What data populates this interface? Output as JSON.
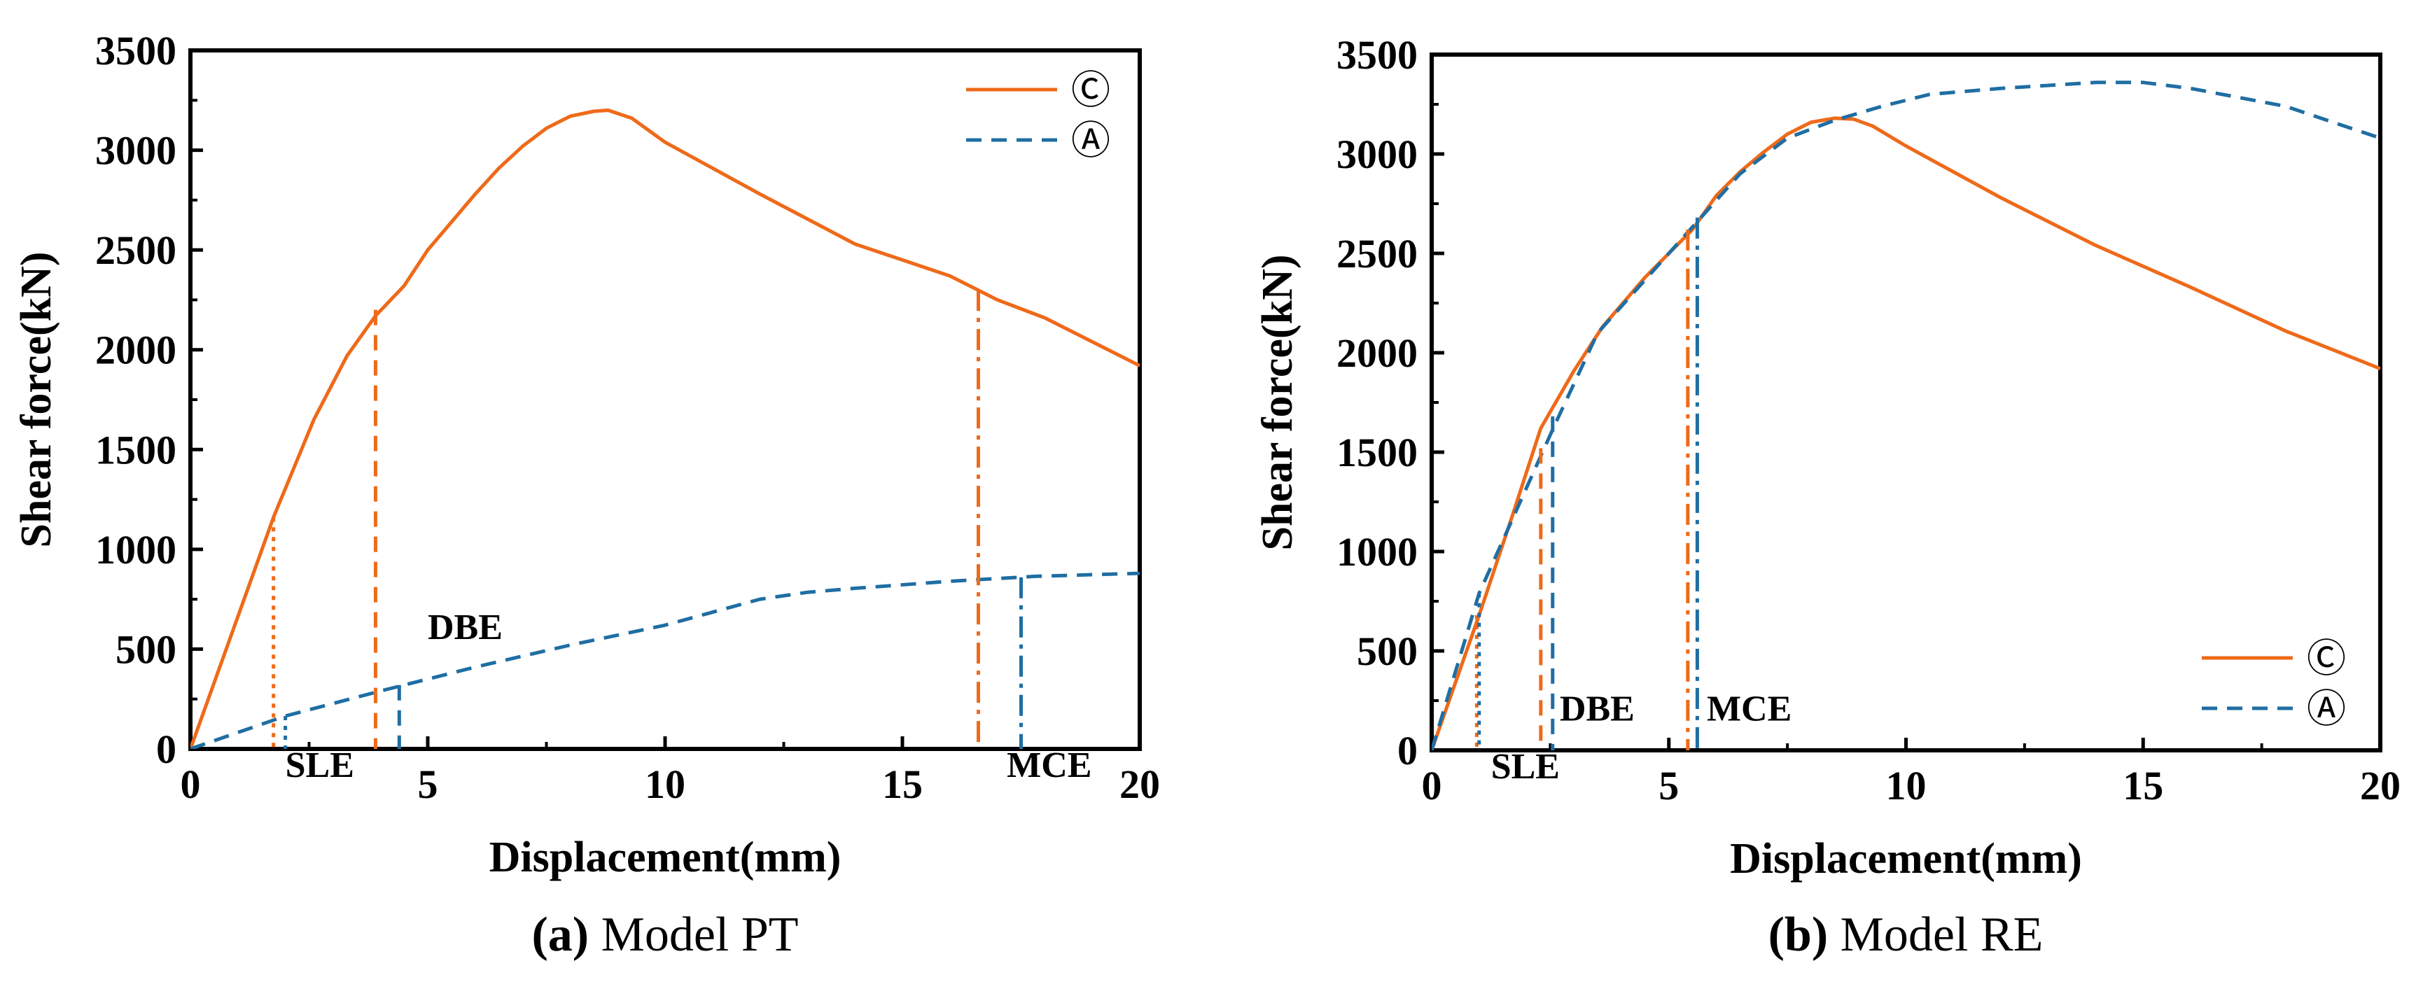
{
  "chart_data": [
    {
      "type": "line",
      "caption_letter": "(a)",
      "caption_text": " Model PT",
      "xlabel": "Displacement(mm)",
      "ylabel": "Shear force(kN)",
      "xlim": [
        0,
        20
      ],
      "ylim": [
        0,
        3500
      ],
      "xticks": [
        0,
        5,
        10,
        15,
        20
      ],
      "yticks": [
        0,
        500,
        1000,
        1500,
        2000,
        2500,
        3000,
        3500
      ],
      "grid": false,
      "legend": {
        "position": "top-right",
        "entries": [
          "Ⓒ",
          "Ⓐ"
        ]
      },
      "series": [
        {
          "name": "Ⓒ",
          "color": "#ee6a1a",
          "style": "solid",
          "x": [
            0,
            1.75,
            2.6,
            3.3,
            3.9,
            4.5,
            5.0,
            6.0,
            6.5,
            7.0,
            7.5,
            8.0,
            8.5,
            8.8,
            9.3,
            10,
            12,
            14,
            16,
            17,
            18,
            20
          ],
          "y": [
            0,
            1160,
            1650,
            1970,
            2170,
            2320,
            2500,
            2780,
            2910,
            3020,
            3110,
            3170,
            3195,
            3200,
            3160,
            3040,
            2780,
            2530,
            2370,
            2250,
            2160,
            1920
          ]
        },
        {
          "name": "Ⓐ",
          "color": "#1f6ea3",
          "style": "dashed",
          "x": [
            0,
            2,
            4,
            6,
            8,
            10,
            12,
            13,
            14,
            16,
            17.8,
            20
          ],
          "y": [
            0,
            165,
            290,
            410,
            520,
            620,
            750,
            785,
            805,
            840,
            865,
            880
          ]
        }
      ],
      "markers": [
        {
          "label": "SLE",
          "x": 1.75,
          "y": 1160,
          "color": "#ee6a1a",
          "style": "dotted"
        },
        {
          "x": 2.0,
          "y": 165,
          "color": "#1f6ea3",
          "style": "dotted"
        },
        {
          "x": 3.9,
          "y": 2200,
          "color": "#ee6a1a",
          "style": "dashed"
        },
        {
          "label": "DBE",
          "x": 4.4,
          "y": 320,
          "color": "#1f6ea3",
          "style": "dashed"
        },
        {
          "x": 16.6,
          "y": 2300,
          "color": "#ee6a1a",
          "style": "dashdot"
        },
        {
          "label": "MCE",
          "x": 17.5,
          "y": 860,
          "color": "#1f6ea3",
          "style": "dashdot"
        }
      ],
      "annotations": [
        {
          "text": "SLE",
          "x": 2.0,
          "y": -140
        },
        {
          "text": "DBE",
          "x": 5.0,
          "y": 550
        },
        {
          "text": "MCE",
          "x": 17.2,
          "y": -140
        }
      ]
    },
    {
      "type": "line",
      "caption_letter": "(b)",
      "caption_text": " Model RE",
      "xlabel": "Displacement(mm)",
      "ylabel": "Shear force(kN)",
      "xlim": [
        0,
        20
      ],
      "ylim": [
        0,
        3500
      ],
      "xticks": [
        0,
        5,
        10,
        15,
        20
      ],
      "yticks": [
        0,
        500,
        1000,
        1500,
        2000,
        2500,
        3000,
        3500
      ],
      "grid": false,
      "legend": {
        "position": "bottom-right",
        "entries": [
          "Ⓒ",
          "Ⓐ"
        ]
      },
      "series": [
        {
          "name": "Ⓒ",
          "color": "#ee6a1a",
          "style": "solid",
          "x": [
            0,
            1.0,
            1.7,
            2.3,
            3.0,
            3.6,
            4.5,
            5.5,
            6.0,
            6.5,
            7.0,
            7.5,
            8.0,
            8.5,
            8.9,
            9.3,
            10,
            12,
            14,
            16,
            18,
            20
          ],
          "y": [
            0,
            680,
            1180,
            1620,
            1910,
            2130,
            2380,
            2620,
            2790,
            2910,
            3010,
            3100,
            3160,
            3180,
            3175,
            3140,
            3040,
            2780,
            2540,
            2330,
            2110,
            1920
          ]
        },
        {
          "name": "Ⓐ",
          "color": "#1f6ea3",
          "style": "dashed",
          "x": [
            0,
            1.0,
            2.6,
            3.5,
            5.6,
            6.5,
            7.5,
            8.5,
            9.5,
            10.5,
            12,
            14,
            15,
            16,
            18,
            20
          ],
          "y": [
            0,
            790,
            1640,
            2100,
            2660,
            2900,
            3080,
            3170,
            3240,
            3300,
            3330,
            3360,
            3360,
            3330,
            3240,
            3080
          ]
        }
      ],
      "markers": [
        {
          "label": "SLE",
          "x": 0.95,
          "y": 680,
          "color": "#ee6a1a",
          "style": "dotted"
        },
        {
          "x": 1.0,
          "y": 790,
          "color": "#1f6ea3",
          "style": "dotted"
        },
        {
          "x": 2.3,
          "y": 1520,
          "color": "#ee6a1a",
          "style": "dashed"
        },
        {
          "label": "DBE",
          "x": 2.55,
          "y": 1680,
          "color": "#1f6ea3",
          "style": "dashed"
        },
        {
          "x": 5.4,
          "y": 2620,
          "color": "#ee6a1a",
          "style": "dashdot"
        },
        {
          "label": "MCE",
          "x": 5.6,
          "y": 2680,
          "color": "#1f6ea3",
          "style": "dashdot"
        }
      ],
      "annotations": [
        {
          "text": "SLE",
          "x": 1.25,
          "y": -140
        },
        {
          "text": "DBE",
          "x": 2.7,
          "y": 150
        },
        {
          "text": "MCE",
          "x": 5.8,
          "y": 150
        }
      ]
    }
  ]
}
